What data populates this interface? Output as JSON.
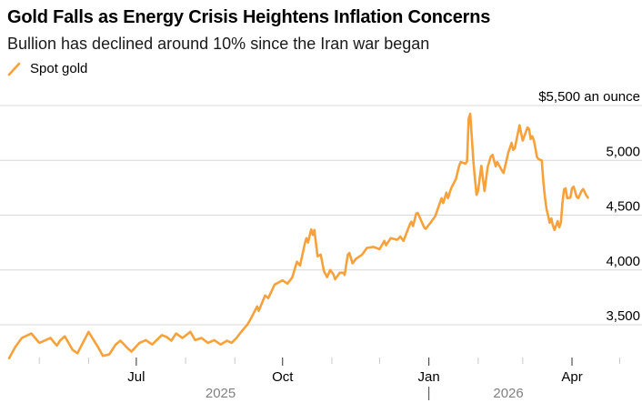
{
  "header": {
    "title": "Gold Falls as Energy Crisis Heightens Inflation Concerns",
    "subtitle": "Bullion has declined around 10% since the Iran war began"
  },
  "legend": {
    "label": "Spot gold",
    "color": "#F7A13B"
  },
  "chart_data": {
    "type": "line",
    "title": "Gold Falls as Energy Crisis Heightens Inflation Concerns",
    "subtitle": "Bullion has declined around 10% since the Iran war began",
    "grid": "horizontal",
    "legend_position": "top-left",
    "y_axis": {
      "side": "right",
      "unit_label": "$5,500 an ounce",
      "ticks": [
        {
          "value": 5500,
          "label": "$5,500 an ounce"
        },
        {
          "value": 5000,
          "label": "5,000"
        },
        {
          "value": 4500,
          "label": "4,500"
        },
        {
          "value": 4000,
          "label": "4,000"
        },
        {
          "value": 3500,
          "label": "3,500"
        }
      ],
      "range": [
        3150,
        5560
      ]
    },
    "x_axis": {
      "domain": [
        "2025-04-12",
        "2026-04-13"
      ],
      "major_ticks": [
        {
          "date": "2025-07-01",
          "label": "Jul"
        },
        {
          "date": "2025-10-01",
          "label": "Oct"
        },
        {
          "date": "2026-01-01",
          "label": "Jan"
        },
        {
          "date": "2026-04-01",
          "label": "Apr"
        }
      ],
      "minor_tick_dates": [
        "2025-05-01",
        "2025-06-01",
        "2025-08-01",
        "2025-09-01",
        "2025-11-01",
        "2025-12-01",
        "2026-02-01",
        "2026-03-01",
        "2026-05-01"
      ],
      "year_labels": [
        {
          "label": "2025",
          "anchor_date": "2025-08-23"
        },
        {
          "label": "2026",
          "anchor_date": "2026-02-20"
        }
      ],
      "year_separator_date": "2026-01-01"
    },
    "colors": {
      "line": "#F7A13B",
      "grid": "#D8D8D8",
      "major_tick": "#2E2E2E",
      "minor_tick": "#C9C9C9",
      "axis_text": "#000000",
      "year_text": "#808080",
      "year_separator": "#444444"
    },
    "series": [
      {
        "name": "Spot gold",
        "color": "#F7A13B",
        "points": [
          [
            "2025-04-12",
            3195
          ],
          [
            "2025-04-16",
            3300
          ],
          [
            "2025-04-20",
            3380
          ],
          [
            "2025-04-26",
            3420
          ],
          [
            "2025-05-01",
            3335
          ],
          [
            "2025-05-05",
            3360
          ],
          [
            "2025-05-08",
            3380
          ],
          [
            "2025-05-12",
            3310
          ],
          [
            "2025-05-14",
            3355
          ],
          [
            "2025-05-17",
            3395
          ],
          [
            "2025-05-22",
            3270
          ],
          [
            "2025-05-25",
            3240
          ],
          [
            "2025-06-01",
            3435
          ],
          [
            "2025-06-07",
            3295
          ],
          [
            "2025-06-10",
            3215
          ],
          [
            "2025-06-14",
            3230
          ],
          [
            "2025-06-18",
            3320
          ],
          [
            "2025-06-21",
            3355
          ],
          [
            "2025-06-26",
            3280
          ],
          [
            "2025-06-28",
            3255
          ],
          [
            "2025-07-03",
            3335
          ],
          [
            "2025-07-07",
            3360
          ],
          [
            "2025-07-11",
            3320
          ],
          [
            "2025-07-17",
            3405
          ],
          [
            "2025-07-20",
            3390
          ],
          [
            "2025-07-23",
            3355
          ],
          [
            "2025-07-26",
            3420
          ],
          [
            "2025-07-30",
            3380
          ],
          [
            "2025-08-04",
            3435
          ],
          [
            "2025-08-07",
            3360
          ],
          [
            "2025-08-11",
            3380
          ],
          [
            "2025-08-15",
            3335
          ],
          [
            "2025-08-19",
            3360
          ],
          [
            "2025-08-23",
            3320
          ],
          [
            "2025-08-27",
            3355
          ],
          [
            "2025-08-30",
            3335
          ],
          [
            "2025-09-02",
            3380
          ],
          [
            "2025-09-05",
            3435
          ],
          [
            "2025-09-09",
            3505
          ],
          [
            "2025-09-11",
            3555
          ],
          [
            "2025-09-15",
            3668
          ],
          [
            "2025-09-16",
            3627
          ],
          [
            "2025-09-20",
            3767
          ],
          [
            "2025-09-22",
            3742
          ],
          [
            "2025-09-26",
            3867
          ],
          [
            "2025-10-01",
            3905
          ],
          [
            "2025-10-04",
            3875
          ],
          [
            "2025-10-07",
            3930
          ],
          [
            "2025-10-10",
            4075
          ],
          [
            "2025-10-12",
            4040
          ],
          [
            "2025-10-15",
            4240
          ],
          [
            "2025-10-16",
            4290
          ],
          [
            "2025-10-17",
            4250
          ],
          [
            "2025-10-19",
            4370
          ],
          [
            "2025-10-20",
            4320
          ],
          [
            "2025-10-21",
            4365
          ],
          [
            "2025-10-23",
            4125
          ],
          [
            "2025-10-25",
            4140
          ],
          [
            "2025-10-27",
            3990
          ],
          [
            "2025-10-29",
            3935
          ],
          [
            "2025-10-31",
            4000
          ],
          [
            "2025-11-02",
            3960
          ],
          [
            "2025-11-03",
            3915
          ],
          [
            "2025-11-06",
            3975
          ],
          [
            "2025-11-08",
            3975
          ],
          [
            "2025-11-09",
            3955
          ],
          [
            "2025-11-11",
            4140
          ],
          [
            "2025-11-12",
            4155
          ],
          [
            "2025-11-14",
            4060
          ],
          [
            "2025-11-16",
            4100
          ],
          [
            "2025-11-20",
            4140
          ],
          [
            "2025-11-23",
            4200
          ],
          [
            "2025-11-27",
            4210
          ],
          [
            "2025-12-01",
            4190
          ],
          [
            "2025-12-04",
            4265
          ],
          [
            "2025-12-05",
            4225
          ],
          [
            "2025-12-08",
            4290
          ],
          [
            "2025-12-12",
            4275
          ],
          [
            "2025-12-14",
            4305
          ],
          [
            "2025-12-16",
            4265
          ],
          [
            "2025-12-20",
            4415
          ],
          [
            "2025-12-21",
            4440
          ],
          [
            "2025-12-22",
            4400
          ],
          [
            "2025-12-24",
            4515
          ],
          [
            "2025-12-25",
            4520
          ],
          [
            "2025-12-29",
            4390
          ],
          [
            "2025-12-30",
            4375
          ],
          [
            "2026-01-02",
            4430
          ],
          [
            "2026-01-05",
            4490
          ],
          [
            "2026-01-09",
            4655
          ],
          [
            "2026-01-10",
            4610
          ],
          [
            "2026-01-12",
            4705
          ],
          [
            "2026-01-13",
            4655
          ],
          [
            "2026-01-15",
            4745
          ],
          [
            "2026-01-18",
            4830
          ],
          [
            "2026-01-20",
            4950
          ],
          [
            "2026-01-21",
            4985
          ],
          [
            "2026-01-24",
            4970
          ],
          [
            "2026-01-25",
            4990
          ],
          [
            "2026-01-26",
            5380
          ],
          [
            "2026-01-27",
            5425
          ],
          [
            "2026-01-29",
            4990
          ],
          [
            "2026-01-30",
            4830
          ],
          [
            "2026-01-31",
            4685
          ],
          [
            "2026-02-01",
            4725
          ],
          [
            "2026-02-03",
            4950
          ],
          [
            "2026-02-05",
            4720
          ],
          [
            "2026-02-07",
            4940
          ],
          [
            "2026-02-09",
            5035
          ],
          [
            "2026-02-10",
            5050
          ],
          [
            "2026-02-12",
            4945
          ],
          [
            "2026-02-13",
            4985
          ],
          [
            "2026-02-16",
            4905
          ],
          [
            "2026-02-17",
            4885
          ],
          [
            "2026-02-20",
            5075
          ],
          [
            "2026-02-22",
            5160
          ],
          [
            "2026-02-23",
            5095
          ],
          [
            "2026-02-24",
            5110
          ],
          [
            "2026-02-27",
            5320
          ],
          [
            "2026-03-01",
            5180
          ],
          [
            "2026-03-04",
            5300
          ],
          [
            "2026-03-05",
            5285
          ],
          [
            "2026-03-06",
            5195
          ],
          [
            "2026-03-07",
            5220
          ],
          [
            "2026-03-08",
            5185
          ],
          [
            "2026-03-09",
            5110
          ],
          [
            "2026-03-10",
            5030
          ],
          [
            "2026-03-11",
            5010
          ],
          [
            "2026-03-13",
            5000
          ],
          [
            "2026-03-14",
            4805
          ],
          [
            "2026-03-15",
            4660
          ],
          [
            "2026-03-16",
            4555
          ],
          [
            "2026-03-17",
            4495
          ],
          [
            "2026-03-18",
            4430
          ],
          [
            "2026-03-19",
            4470
          ],
          [
            "2026-03-20",
            4405
          ],
          [
            "2026-03-21",
            4365
          ],
          [
            "2026-03-23",
            4445
          ],
          [
            "2026-03-24",
            4390
          ],
          [
            "2026-03-25",
            4430
          ],
          [
            "2026-03-26",
            4610
          ],
          [
            "2026-03-27",
            4735
          ],
          [
            "2026-03-28",
            4745
          ],
          [
            "2026-03-29",
            4655
          ],
          [
            "2026-03-31",
            4660
          ],
          [
            "2026-04-01",
            4745
          ],
          [
            "2026-04-02",
            4760
          ],
          [
            "2026-04-04",
            4665
          ],
          [
            "2026-04-05",
            4655
          ],
          [
            "2026-04-07",
            4720
          ],
          [
            "2026-04-08",
            4737
          ],
          [
            "2026-04-10",
            4680
          ],
          [
            "2026-04-11",
            4660
          ]
        ]
      }
    ]
  }
}
